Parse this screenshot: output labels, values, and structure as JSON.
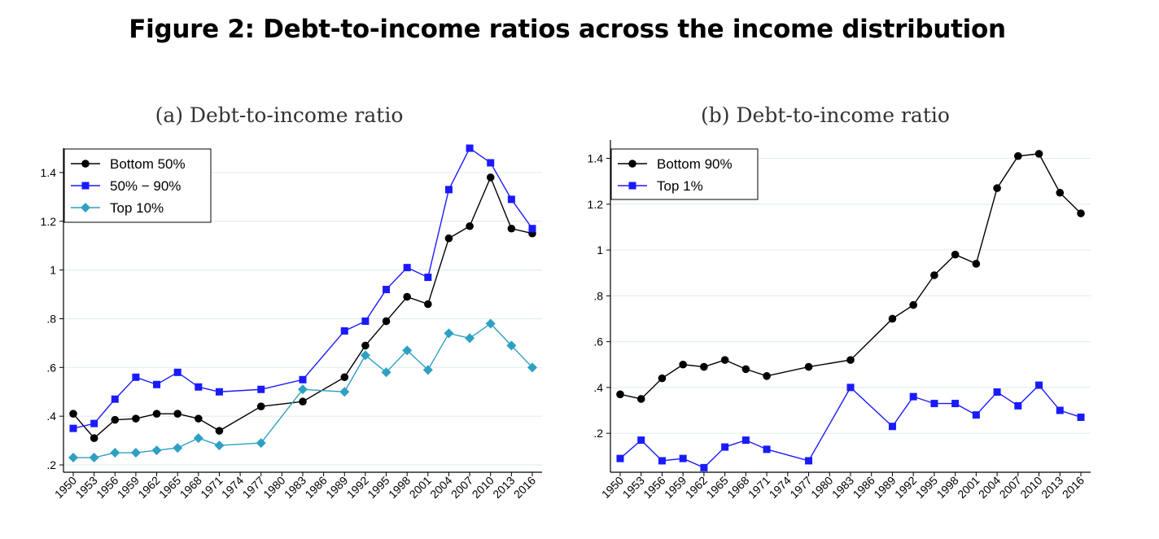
{
  "figure_title": "Figure 2: Debt-to-income ratios across the income distribution",
  "chart_data": [
    {
      "type": "line",
      "title": "(a) Debt-to-income ratio",
      "xlabel": "",
      "ylabel": "",
      "x": [
        1950,
        1953,
        1956,
        1959,
        1962,
        1965,
        1968,
        1971,
        1977,
        1983,
        1989,
        1992,
        1995,
        1998,
        2001,
        2004,
        2007,
        2010,
        2013,
        2016
      ],
      "x_ticks": [
        "1950",
        "1953",
        "1956",
        "1959",
        "1962",
        "1965",
        "1968",
        "1971",
        "1974",
        "1977",
        "1980",
        "1983",
        "1986",
        "1989",
        "1992",
        "1995",
        "1998",
        "2001",
        "2004",
        "2007",
        "2010",
        "2013",
        "2016"
      ],
      "y_ticks": [
        ".2",
        ".4",
        ".6",
        ".8",
        "1",
        "1.2",
        "1.4"
      ],
      "y_tick_values": [
        0.2,
        0.4,
        0.6,
        0.8,
        1.0,
        1.2,
        1.4
      ],
      "ylim": [
        0.17,
        1.5
      ],
      "grid": "horizontal",
      "legend_position": "top-left",
      "series": [
        {
          "name": "Bottom 50%",
          "color": "#000000",
          "marker": "circle",
          "values": [
            0.41,
            0.31,
            0.385,
            0.39,
            0.41,
            0.41,
            0.39,
            0.34,
            0.44,
            0.46,
            0.56,
            0.69,
            0.79,
            0.89,
            0.86,
            1.13,
            1.18,
            1.38,
            1.17,
            1.15
          ]
        },
        {
          "name": "50% − 90%",
          "color": "#1a1aff",
          "marker": "square",
          "values": [
            0.35,
            0.37,
            0.47,
            0.56,
            0.53,
            0.58,
            0.52,
            0.5,
            0.51,
            0.55,
            0.75,
            0.79,
            0.92,
            1.01,
            0.97,
            1.33,
            1.5,
            1.44,
            1.29,
            1.17
          ]
        },
        {
          "name": "Top 10%",
          "color": "#2ea0c3",
          "marker": "diamond",
          "values": [
            0.23,
            0.23,
            0.25,
            0.25,
            0.26,
            0.27,
            0.31,
            0.28,
            0.29,
            0.51,
            0.5,
            0.65,
            0.58,
            0.67,
            0.59,
            0.74,
            0.72,
            0.78,
            0.69,
            0.6
          ]
        }
      ]
    },
    {
      "type": "line",
      "title": "(b) Debt-to-income ratio",
      "xlabel": "",
      "ylabel": "",
      "x": [
        1950,
        1953,
        1956,
        1959,
        1962,
        1965,
        1968,
        1971,
        1977,
        1983,
        1989,
        1992,
        1995,
        1998,
        2001,
        2004,
        2007,
        2010,
        2013,
        2016
      ],
      "x_ticks": [
        "1950",
        "1953",
        "1956",
        "1959",
        "1962",
        "1965",
        "1968",
        "1971",
        "1974",
        "1977",
        "1980",
        "1983",
        "1986",
        "1989",
        "1992",
        "1995",
        "1998",
        "2001",
        "2004",
        "2007",
        "2010",
        "2013",
        "2016"
      ],
      "y_ticks": [
        ".2",
        ".4",
        ".6",
        ".8",
        "1",
        "1.2",
        "1.4"
      ],
      "y_tick_values": [
        0.2,
        0.4,
        0.6,
        0.8,
        1.0,
        1.2,
        1.4
      ],
      "ylim": [
        0.03,
        1.48
      ],
      "grid": "horizontal",
      "legend_position": "top-left",
      "series": [
        {
          "name": "Bottom 90%",
          "color": "#000000",
          "marker": "circle",
          "values": [
            0.37,
            0.35,
            0.44,
            0.5,
            0.49,
            0.52,
            0.48,
            0.45,
            0.49,
            0.52,
            0.7,
            0.76,
            0.89,
            0.98,
            0.94,
            1.27,
            1.41,
            1.42,
            1.25,
            1.16
          ]
        },
        {
          "name": "Top 1%",
          "color": "#1a1aff",
          "marker": "square",
          "values": [
            0.09,
            0.17,
            0.08,
            0.09,
            0.05,
            0.14,
            0.17,
            0.13,
            0.08,
            0.4,
            0.23,
            0.36,
            0.33,
            0.33,
            0.28,
            0.38,
            0.32,
            0.41,
            0.3,
            0.27
          ]
        }
      ]
    }
  ]
}
